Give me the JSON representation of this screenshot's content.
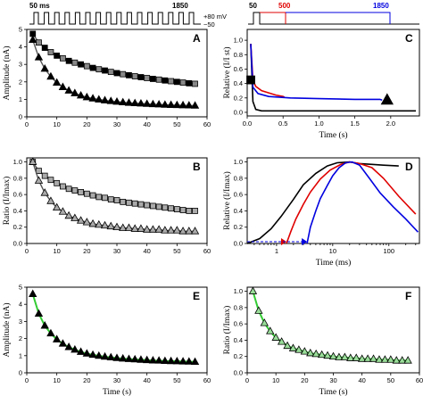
{
  "figure": {
    "stim_left": {
      "label_start": "50 ms",
      "label_end": "1850",
      "v_high": "+80 mV",
      "v_low": "−50"
    },
    "stim_right": {
      "label_start": "50",
      "label_mid": "500",
      "label_end": "1850"
    }
  },
  "chart_data": [
    {
      "panel": "A",
      "type": "scatter",
      "xlabel": "",
      "ylabel": "Amplitude (nA)",
      "xlim": [
        0,
        60
      ],
      "ylim": [
        0,
        5
      ],
      "xticks": [
        "0",
        "10",
        "20",
        "30",
        "40",
        "50",
        "60"
      ],
      "yticks": [
        "0",
        "1",
        "2",
        "3",
        "4",
        "5"
      ],
      "series": [
        {
          "marker": "square",
          "x": [
            2,
            4,
            6,
            8,
            10,
            12,
            14,
            16,
            18,
            20,
            22,
            24,
            26,
            28,
            30,
            32,
            34,
            36,
            38,
            40,
            42,
            44,
            46,
            48,
            50,
            52,
            54,
            56
          ],
          "values": [
            4.75,
            4.25,
            3.95,
            3.7,
            3.5,
            3.35,
            3.2,
            3.1,
            3.0,
            2.9,
            2.8,
            2.72,
            2.65,
            2.57,
            2.5,
            2.44,
            2.38,
            2.32,
            2.27,
            2.22,
            2.17,
            2.13,
            2.08,
            2.04,
            2.0,
            1.96,
            1.92,
            1.89
          ]
        },
        {
          "marker": "triangle",
          "x": [
            2,
            4,
            6,
            8,
            10,
            12,
            14,
            16,
            18,
            20,
            22,
            24,
            26,
            28,
            30,
            32,
            34,
            36,
            38,
            40,
            42,
            44,
            46,
            48,
            50,
            52,
            54,
            56
          ],
          "values": [
            4.4,
            3.4,
            2.75,
            2.3,
            1.95,
            1.7,
            1.5,
            1.35,
            1.22,
            1.12,
            1.05,
            0.99,
            0.94,
            0.9,
            0.86,
            0.83,
            0.8,
            0.78,
            0.76,
            0.74,
            0.72,
            0.71,
            0.69,
            0.68,
            0.67,
            0.66,
            0.65,
            0.64
          ]
        }
      ]
    },
    {
      "panel": "B",
      "type": "scatter",
      "xlabel": "",
      "ylabel": "Ratio (I/Imax)",
      "xlim": [
        0,
        60
      ],
      "ylim": [
        0,
        1.05
      ],
      "xticks": [
        "0",
        "10",
        "20",
        "30",
        "40",
        "50",
        "60"
      ],
      "yticks": [
        "0.0",
        "0.2",
        "0.4",
        "0.6",
        "0.8",
        "1.0"
      ],
      "series": [
        {
          "marker": "square",
          "x": [
            2,
            4,
            6,
            8,
            10,
            12,
            14,
            16,
            18,
            20,
            22,
            24,
            26,
            28,
            30,
            32,
            34,
            36,
            38,
            40,
            42,
            44,
            46,
            48,
            50,
            52,
            54,
            56
          ],
          "values": [
            1.0,
            0.89,
            0.83,
            0.78,
            0.74,
            0.7,
            0.67,
            0.65,
            0.63,
            0.61,
            0.59,
            0.57,
            0.56,
            0.54,
            0.53,
            0.51,
            0.5,
            0.49,
            0.48,
            0.47,
            0.46,
            0.45,
            0.44,
            0.43,
            0.42,
            0.41,
            0.4,
            0.4
          ]
        },
        {
          "marker": "triangle",
          "x": [
            2,
            4,
            6,
            8,
            10,
            12,
            14,
            16,
            18,
            20,
            22,
            24,
            26,
            28,
            30,
            32,
            34,
            36,
            38,
            40,
            42,
            44,
            46,
            48,
            50,
            52,
            54,
            56
          ],
          "values": [
            1.0,
            0.77,
            0.62,
            0.52,
            0.44,
            0.39,
            0.34,
            0.31,
            0.28,
            0.26,
            0.24,
            0.23,
            0.22,
            0.21,
            0.2,
            0.19,
            0.19,
            0.18,
            0.18,
            0.17,
            0.17,
            0.17,
            0.16,
            0.16,
            0.16,
            0.15,
            0.15,
            0.15
          ]
        }
      ]
    },
    {
      "panel": "C",
      "type": "line",
      "xlabel": "Time (s)",
      "ylabel": "Relative (I/I st)",
      "xlim": [
        0,
        2.4
      ],
      "ylim": [
        -0.05,
        1.15
      ],
      "xticks": [
        "0.0",
        "0.5",
        "1.0",
        "1.5",
        "2.0"
      ],
      "yticks": [
        "0.0",
        "0.2",
        "0.4",
        "0.6",
        "0.8",
        "1.0"
      ],
      "series": [
        {
          "name": "",
          "color": "#000000",
          "x": [
            0.05,
            0.08,
            0.12,
            0.2,
            0.35,
            0.5,
            1.0,
            1.5,
            2.0,
            2.35
          ],
          "values": [
            0.95,
            0.15,
            0.04,
            0.02,
            0.02,
            0.02,
            0.02,
            0.02,
            0.02,
            0.02
          ]
        },
        {
          "name": "",
          "color": "#e00000",
          "x": [
            0.05,
            0.08,
            0.12,
            0.2,
            0.3,
            0.4,
            0.5,
            0.52
          ],
          "values": [
            0.95,
            0.45,
            0.36,
            0.3,
            0.27,
            0.24,
            0.22,
            0.21
          ]
        },
        {
          "name": "",
          "color": "#0000e0",
          "x": [
            0.05,
            0.08,
            0.15,
            0.3,
            0.6,
            1.0,
            1.5,
            1.85,
            1.88
          ],
          "values": [
            0.95,
            0.35,
            0.26,
            0.22,
            0.2,
            0.19,
            0.18,
            0.18,
            0.17
          ]
        }
      ],
      "markers": [
        {
          "marker": "square",
          "x": 0.05,
          "value": 0.45
        },
        {
          "marker": "triangle",
          "x": 1.95,
          "value": 0.17
        }
      ]
    },
    {
      "panel": "D",
      "type": "line",
      "xlabel": "Time (ms)",
      "ylabel": "Relative (I/Imax)",
      "scale": "log-x",
      "xlim": [
        0.3,
        350
      ],
      "ylim": [
        0,
        1.05
      ],
      "xticks": [
        "1",
        "10",
        "100"
      ],
      "yticks": [
        "0.0",
        "0.2",
        "0.4",
        "0.6",
        "0.8",
        "1.0"
      ],
      "series": [
        {
          "name": "",
          "color": "#000000",
          "x": [
            0.3,
            0.5,
            0.8,
            1.2,
            2,
            3,
            5,
            8,
            12,
            20,
            30,
            50,
            80,
            150
          ],
          "values": [
            0.0,
            0.06,
            0.18,
            0.33,
            0.54,
            0.72,
            0.86,
            0.95,
            0.99,
            1.0,
            0.98,
            0.97,
            0.96,
            0.95
          ]
        },
        {
          "name": "",
          "color": "#e00000",
          "x": [
            1.5,
            1.8,
            2.2,
            3,
            4,
            6,
            9,
            14,
            20,
            30,
            50,
            80,
            150,
            300
          ],
          "values": [
            0.0,
            0.15,
            0.3,
            0.48,
            0.63,
            0.79,
            0.9,
            0.97,
            1.0,
            0.98,
            0.93,
            0.8,
            0.58,
            0.36
          ]
        },
        {
          "name": "",
          "color": "#0000e0",
          "x": [
            3.5,
            4,
            5,
            6,
            8,
            10,
            13,
            17,
            22,
            30,
            45,
            70,
            120,
            200,
            330
          ],
          "values": [
            0.0,
            0.2,
            0.4,
            0.55,
            0.71,
            0.83,
            0.93,
            0.99,
            1.0,
            0.96,
            0.8,
            0.62,
            0.45,
            0.3,
            0.14
          ]
        }
      ],
      "arrows": [
        {
          "color": "#e00000",
          "x_from": 0.3,
          "x_to": 1.5,
          "value": 0.0
        },
        {
          "color": "#0000e0",
          "x_from": 0.3,
          "x_to": 3.5,
          "value": 0.0
        }
      ]
    },
    {
      "panel": "E",
      "type": "scatter",
      "xlabel": "Time (s)",
      "ylabel": "Amplitude (nA)",
      "xlim": [
        0,
        60
      ],
      "ylim": [
        0,
        5
      ],
      "xticks": [
        "0",
        "10",
        "20",
        "30",
        "40",
        "50",
        "60"
      ],
      "yticks": [
        "0",
        "1",
        "2",
        "3",
        "4",
        "5"
      ],
      "series": [
        {
          "marker": "triangle",
          "x": [
            2,
            4,
            6,
            8,
            10,
            12,
            14,
            16,
            18,
            20,
            22,
            24,
            26,
            28,
            30,
            32,
            34,
            36,
            38,
            40,
            42,
            44,
            46,
            48,
            50,
            52,
            54,
            56
          ],
          "values": [
            4.6,
            3.45,
            2.75,
            2.3,
            1.95,
            1.7,
            1.5,
            1.35,
            1.22,
            1.12,
            1.05,
            0.99,
            0.94,
            0.9,
            0.86,
            0.83,
            0.8,
            0.78,
            0.76,
            0.74,
            0.72,
            0.71,
            0.69,
            0.68,
            0.67,
            0.66,
            0.65,
            0.64
          ]
        }
      ]
    },
    {
      "panel": "F",
      "type": "scatter",
      "xlabel": "Time (s)",
      "ylabel": "Ratio (I/Imax)",
      "xlim": [
        0,
        60
      ],
      "ylim": [
        0,
        1.05
      ],
      "xticks": [
        "0",
        "10",
        "20",
        "30",
        "40",
        "50",
        "60"
      ],
      "yticks": [
        "0.0",
        "0.2",
        "0.4",
        "0.6",
        "0.8",
        "1.0"
      ],
      "series": [
        {
          "marker": "triangle",
          "x": [
            2,
            4,
            6,
            8,
            10,
            12,
            14,
            16,
            18,
            20,
            22,
            24,
            26,
            28,
            30,
            32,
            34,
            36,
            38,
            40,
            42,
            44,
            46,
            48,
            50,
            52,
            54,
            56
          ],
          "values": [
            1.0,
            0.76,
            0.61,
            0.51,
            0.43,
            0.38,
            0.33,
            0.3,
            0.28,
            0.26,
            0.24,
            0.23,
            0.22,
            0.21,
            0.2,
            0.19,
            0.19,
            0.18,
            0.18,
            0.17,
            0.17,
            0.17,
            0.16,
            0.16,
            0.16,
            0.15,
            0.15,
            0.15
          ]
        }
      ]
    }
  ]
}
